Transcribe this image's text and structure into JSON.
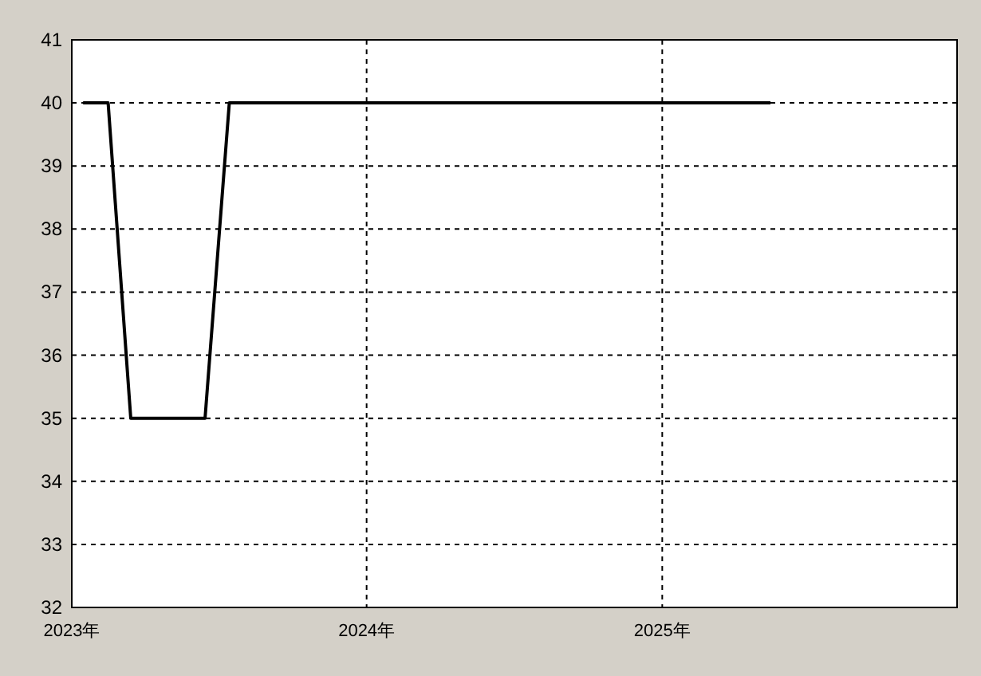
{
  "chart_data": {
    "type": "line",
    "x": [
      "2023-01-15",
      "2023-02-15",
      "2023-03-15",
      "2023-06-15",
      "2023-07-15",
      "2025-05-15"
    ],
    "series": [
      {
        "color": "#000000",
        "values": [
          40,
          40,
          35,
          35,
          40,
          40
        ]
      }
    ],
    "xlim": [
      "2023-01-01",
      "2026-01-01"
    ],
    "xticks": [
      {
        "value": "2023-01-01",
        "label": "2023年"
      },
      {
        "value": "2024-01-01",
        "label": "2024年"
      },
      {
        "value": "2025-01-01",
        "label": "2025年"
      },
      {
        "value": "2026-01-01",
        "label": null
      }
    ],
    "ylim": [
      32,
      41
    ],
    "yticks": [
      32,
      33,
      34,
      35,
      36,
      37,
      38,
      39,
      40,
      41
    ],
    "grid": true,
    "line_style": "solid"
  }
}
